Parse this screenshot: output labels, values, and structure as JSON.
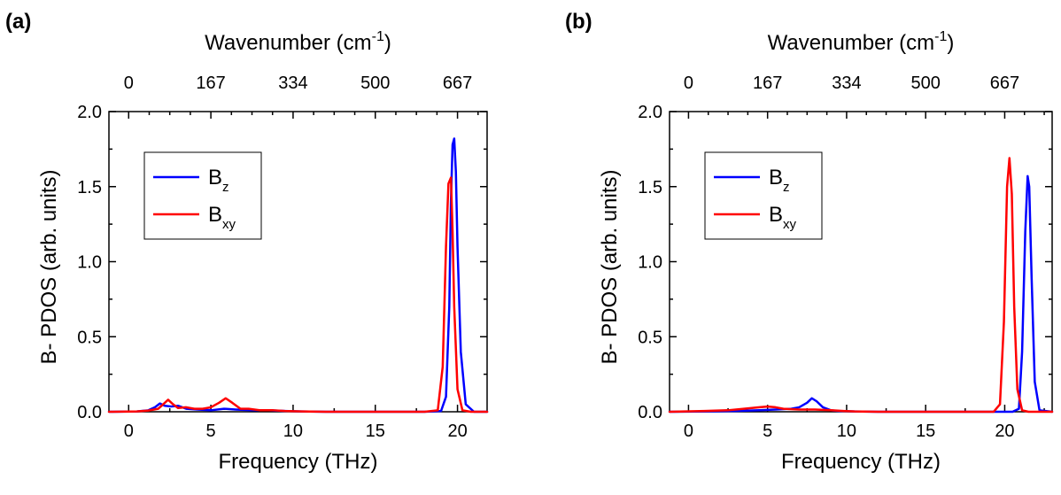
{
  "chart_data": [
    {
      "type": "line",
      "panel_label": "(a)",
      "xlabel": "Frequency (THz)",
      "ylabel": "B- PDOS (arb. units)",
      "x2label_prefix": "Wavenumber (cm",
      "x2label_sup": "-1",
      "x2label_suffix": ")",
      "xlim": [
        -1.2,
        21.8
      ],
      "ylim": [
        0,
        2.0
      ],
      "xticks": [
        0,
        5,
        10,
        15,
        20
      ],
      "yticks": [
        0.0,
        0.5,
        1.0,
        1.5,
        2.0
      ],
      "ytick_labels": [
        "0.0",
        "0.5",
        "1.0",
        "1.5",
        "2.0"
      ],
      "x2ticks": [
        0,
        167,
        334,
        500,
        667
      ],
      "x2ticks_thz": [
        0,
        5,
        10,
        15,
        20
      ],
      "legend": "upper-left",
      "series": [
        {
          "name_main": "B",
          "name_sub": "z",
          "color": "#0000ff",
          "x": [
            -1.2,
            0.5,
            1.2,
            1.6,
            1.9,
            2.2,
            2.6,
            3.0,
            3.5,
            4.2,
            5.0,
            5.8,
            6.5,
            7.5,
            8.5,
            9.5,
            10.5,
            12,
            15,
            18,
            19.0,
            19.3,
            19.5,
            19.6,
            19.7,
            19.8,
            19.9,
            20.0,
            20.2,
            20.5,
            21.0,
            21.8
          ],
          "y": [
            0,
            0.002,
            0.01,
            0.03,
            0.055,
            0.04,
            0.035,
            0.04,
            0.02,
            0.015,
            0.01,
            0.02,
            0.015,
            0.01,
            0.01,
            0.005,
            0.002,
            0,
            0,
            0,
            0.005,
            0.1,
            0.7,
            1.4,
            1.78,
            1.82,
            1.6,
            1.1,
            0.4,
            0.05,
            0,
            0
          ]
        },
        {
          "name_main": "B",
          "name_sub": "xy",
          "color": "#ff0000",
          "x": [
            -1.2,
            0.5,
            1.2,
            1.8,
            2.1,
            2.4,
            2.7,
            3.0,
            3.5,
            4.0,
            4.5,
            5.0,
            5.5,
            5.9,
            6.3,
            6.8,
            7.3,
            8.0,
            8.8,
            9.5,
            10.5,
            12,
            15,
            18,
            18.8,
            19.1,
            19.3,
            19.45,
            19.6,
            19.7,
            19.8,
            20.0,
            20.3,
            20.8,
            21.8
          ],
          "y": [
            0,
            0.002,
            0.008,
            0.02,
            0.05,
            0.08,
            0.05,
            0.025,
            0.03,
            0.02,
            0.02,
            0.03,
            0.06,
            0.09,
            0.06,
            0.02,
            0.02,
            0.01,
            0.01,
            0.005,
            0.002,
            0,
            0,
            0,
            0.01,
            0.3,
            1.1,
            1.52,
            1.56,
            1.2,
            0.7,
            0.15,
            0.01,
            0,
            0
          ]
        }
      ]
    },
    {
      "type": "line",
      "panel_label": "(b)",
      "xlabel": "Frequency (THz)",
      "ylabel": "B- PDOS (arb. units)",
      "x2label_prefix": "Wavenumber (cm",
      "x2label_sup": "-1",
      "x2label_suffix": ")",
      "xlim": [
        -1.2,
        23.0
      ],
      "ylim": [
        0,
        2.0
      ],
      "xticks": [
        0,
        5,
        10,
        15,
        20
      ],
      "yticks": [
        0.0,
        0.5,
        1.0,
        1.5,
        2.0
      ],
      "ytick_labels": [
        "0.0",
        "0.5",
        "1.0",
        "1.5",
        "2.0"
      ],
      "x2ticks": [
        0,
        167,
        334,
        500,
        667
      ],
      "x2ticks_thz": [
        0,
        5,
        10,
        15,
        20
      ],
      "legend": "upper-left",
      "series": [
        {
          "name_main": "B",
          "name_sub": "z",
          "color": "#0000ff",
          "x": [
            -1.2,
            1.0,
            3.0,
            4.5,
            5.5,
            6.5,
            7.0,
            7.5,
            7.8,
            8.1,
            8.5,
            9.0,
            9.5,
            10.5,
            12,
            15,
            20.5,
            20.9,
            21.1,
            21.3,
            21.45,
            21.55,
            21.7,
            21.9,
            22.2,
            23.0
          ],
          "y": [
            0,
            0.002,
            0.005,
            0.01,
            0.015,
            0.02,
            0.03,
            0.06,
            0.09,
            0.07,
            0.03,
            0.01,
            0.005,
            0.002,
            0,
            0,
            0,
            0.02,
            0.4,
            1.2,
            1.57,
            1.5,
            0.9,
            0.2,
            0.01,
            0
          ]
        },
        {
          "name_main": "B",
          "name_sub": "xy",
          "color": "#ff0000",
          "x": [
            -1.2,
            1.0,
            2.5,
            3.5,
            4.5,
            5.0,
            5.5,
            6.0,
            7.0,
            8.0,
            9.0,
            9.8,
            10.5,
            12,
            15,
            19.3,
            19.7,
            19.95,
            20.15,
            20.3,
            20.45,
            20.6,
            20.8,
            21.1,
            21.5,
            23.0
          ],
          "y": [
            0,
            0.005,
            0.01,
            0.02,
            0.03,
            0.035,
            0.03,
            0.02,
            0.015,
            0.015,
            0.01,
            0.005,
            0.002,
            0,
            0,
            0,
            0.05,
            0.6,
            1.5,
            1.69,
            1.45,
            0.7,
            0.15,
            0.01,
            0,
            0
          ]
        }
      ]
    }
  ]
}
